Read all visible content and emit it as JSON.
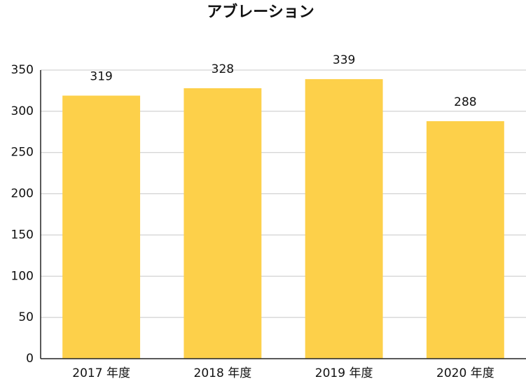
{
  "chart_data": {
    "type": "bar",
    "title": "アブレーション",
    "categories": [
      "2017 年度",
      "2018 年度",
      "2019 年度",
      "2020 年度"
    ],
    "values": [
      319,
      328,
      339,
      288
    ],
    "color": "#fdd04a",
    "ylim": [
      0,
      350
    ],
    "yticks": [
      0,
      50,
      100,
      150,
      200,
      250,
      300,
      350
    ],
    "grid": true
  }
}
